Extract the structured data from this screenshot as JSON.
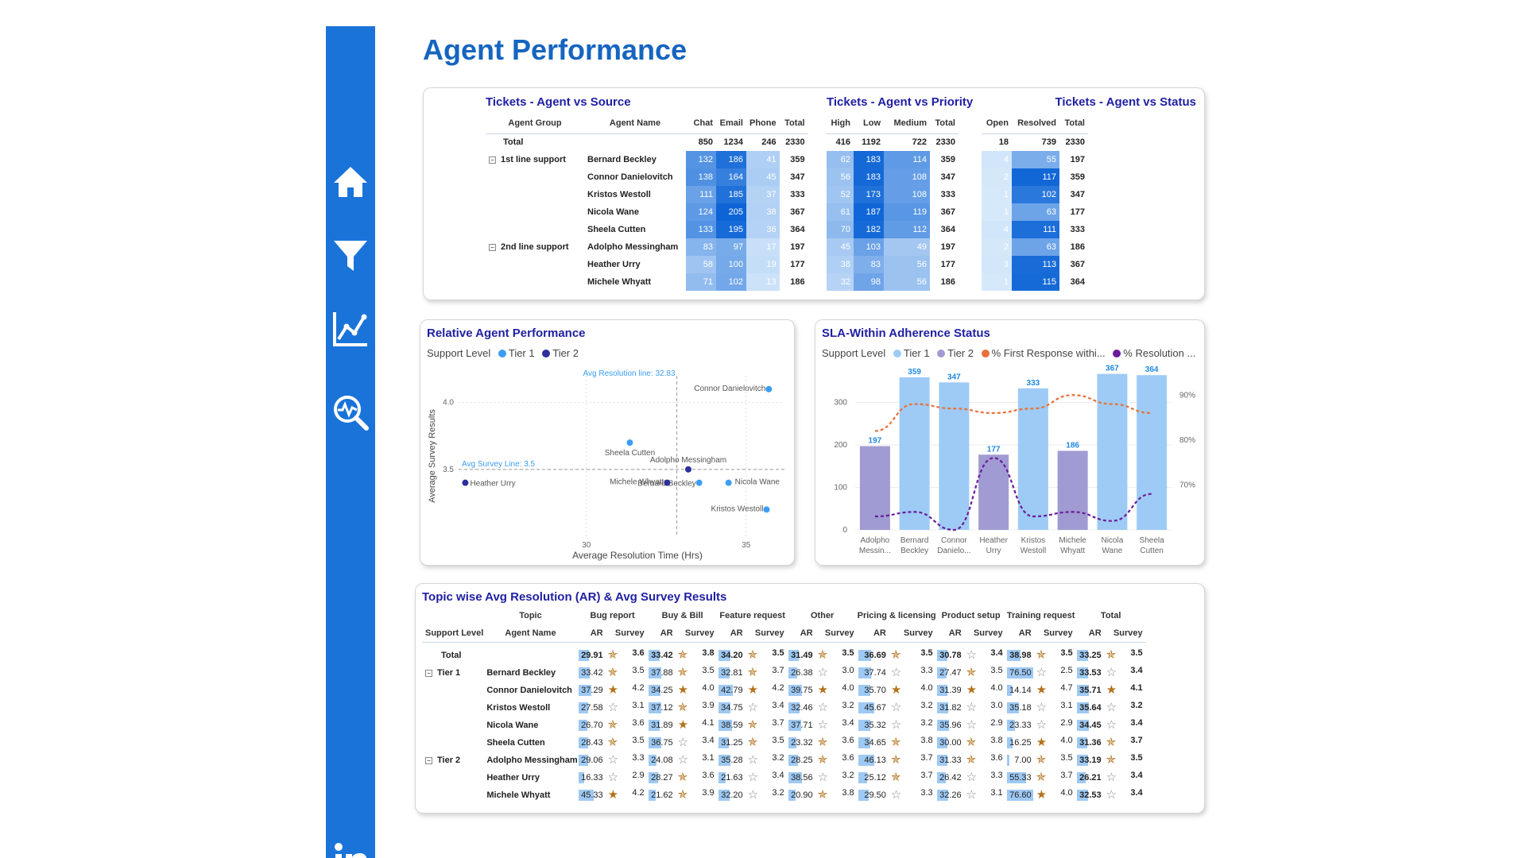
{
  "page": {
    "title": "Agent Performance"
  },
  "nav": [
    {
      "name": "home-icon"
    },
    {
      "name": "filter-icon"
    },
    {
      "name": "line-chart-icon"
    },
    {
      "name": "analytics-search-icon"
    },
    {
      "name": "linkedin-icon"
    }
  ],
  "source_table": {
    "title": "Tickets - Agent vs Source",
    "headers": [
      "Agent Group",
      "Agent Name",
      "Chat",
      "Email",
      "Phone",
      "Total"
    ],
    "total": {
      "label": "Total",
      "values": [
        "850",
        "1234",
        "246",
        "2330"
      ]
    },
    "rows": [
      {
        "group": "1st line support",
        "agent": "Bernard Beckley",
        "values": [
          "132",
          "186",
          "41",
          "359"
        ]
      },
      {
        "group": "",
        "agent": "Connor Danielovitch",
        "values": [
          "138",
          "164",
          "45",
          "347"
        ]
      },
      {
        "group": "",
        "agent": "Kristos Westoll",
        "values": [
          "111",
          "185",
          "37",
          "333"
        ]
      },
      {
        "group": "",
        "agent": "Nicola Wane",
        "values": [
          "124",
          "205",
          "38",
          "367"
        ]
      },
      {
        "group": "",
        "agent": "Sheela Cutten",
        "values": [
          "133",
          "195",
          "36",
          "364"
        ]
      },
      {
        "group": "2nd line support",
        "agent": "Adolpho Messingham",
        "values": [
          "83",
          "97",
          "17",
          "197"
        ]
      },
      {
        "group": "",
        "agent": "Heather Urry",
        "values": [
          "58",
          "100",
          "19",
          "177"
        ]
      },
      {
        "group": "",
        "agent": "Michele Whyatt",
        "values": [
          "71",
          "102",
          "13",
          "186"
        ]
      }
    ]
  },
  "priority_table": {
    "title": "Tickets - Agent vs Priority",
    "headers": [
      "High",
      "Low",
      "Medium",
      "Total"
    ],
    "total": [
      "416",
      "1192",
      "722",
      "2330"
    ],
    "rows": [
      [
        "62",
        "183",
        "114",
        "359"
      ],
      [
        "56",
        "183",
        "108",
        "347"
      ],
      [
        "52",
        "173",
        "108",
        "333"
      ],
      [
        "61",
        "187",
        "119",
        "367"
      ],
      [
        "70",
        "182",
        "112",
        "364"
      ],
      [
        "45",
        "103",
        "49",
        "197"
      ],
      [
        "38",
        "83",
        "56",
        "177"
      ],
      [
        "32",
        "98",
        "56",
        "186"
      ]
    ]
  },
  "status_table": {
    "title": "Tickets - Agent vs Status",
    "headers": [
      "Open",
      "Resolved",
      "Total"
    ],
    "total": [
      "18",
      "739",
      "2330"
    ],
    "rows": [
      [
        "4",
        "55",
        "197"
      ],
      [
        "2",
        "117",
        "359"
      ],
      [
        "1",
        "102",
        "347"
      ],
      [
        "1",
        "63",
        "177"
      ],
      [
        "4",
        "111",
        "333"
      ],
      [
        "2",
        "63",
        "186"
      ],
      [
        "3",
        "113",
        "367"
      ],
      [
        "1",
        "115",
        "364"
      ]
    ]
  },
  "scatter": {
    "title": "Relative Agent Performance",
    "legend_title": "Support Level",
    "legend": [
      {
        "name": "Tier 1",
        "color": "#3a9ef5"
      },
      {
        "name": "Tier 2",
        "color": "#2c2f9c"
      }
    ],
    "ref_x_label": "Avg Resolution line: 32.83",
    "ref_y_label": "Avg Survey Line: 3.5",
    "x_tick_labels": [
      "30",
      "35"
    ],
    "y_tick_labels": [
      "3.5",
      "4.0"
    ]
  },
  "sla": {
    "title": "SLA-Within Adherence Status",
    "legend_title": "Support Level",
    "legend": [
      {
        "name": "Tier 1",
        "color": "#9ecbf5"
      },
      {
        "name": "Tier 2",
        "color": "#a09bd2"
      },
      {
        "name": "% First Response withi...",
        "color": "#e8703a"
      },
      {
        "name": "% Resolution ...",
        "color": "#6a1b9a"
      }
    ],
    "y_tick_labels": [
      "0",
      "100",
      "200",
      "300"
    ],
    "y2_tick_labels": [
      "70%",
      "80%",
      "90%"
    ]
  },
  "chart_data": [
    {
      "type": "scatter",
      "title": "Relative Agent Performance",
      "xlabel": "Average Resolution Time (Hrs)",
      "ylabel": "Average Survey Results",
      "xlim": [
        26,
        36.2
      ],
      "ylim": [
        3.0,
        4.2
      ],
      "ref_x": 32.83,
      "ref_y": 3.5,
      "series": [
        {
          "name": "Tier 1",
          "points": [
            {
              "label": "Connor Danielovitch",
              "x": 35.71,
              "y": 4.1
            },
            {
              "label": "Sheela Cutten",
              "x": 31.36,
              "y": 3.7
            },
            {
              "label": "Nicola Wane",
              "x": 34.45,
              "y": 3.4
            },
            {
              "label": "Bernard Beckley",
              "x": 33.53,
              "y": 3.4
            },
            {
              "label": "Kristos Westoll",
              "x": 35.64,
              "y": 3.2
            }
          ]
        },
        {
          "name": "Tier 2",
          "points": [
            {
              "label": "Adolpho Messingham",
              "x": 33.19,
              "y": 3.5
            },
            {
              "label": "Michele Whyatt",
              "x": 32.53,
              "y": 3.4
            },
            {
              "label": "Heather Urry",
              "x": 26.21,
              "y": 3.4
            }
          ]
        }
      ]
    },
    {
      "type": "bar",
      "title": "SLA-Within Adherence Status",
      "categories": [
        "Adolpho Messin...",
        "Bernard Beckley",
        "Connor Danielo...",
        "Heather Urry",
        "Kristos Westoll",
        "Michele Whyatt",
        "Nicola Wane",
        "Sheela Cutten"
      ],
      "tiers": [
        "Tier 2",
        "Tier 1",
        "Tier 1",
        "Tier 2",
        "Tier 1",
        "Tier 2",
        "Tier 1",
        "Tier 1"
      ],
      "values": [
        197,
        359,
        347,
        177,
        333,
        186,
        367,
        364
      ],
      "ylim": [
        0,
        370
      ],
      "y2lim": [
        0.6,
        0.95
      ],
      "lines": [
        {
          "name": "% First Response withi...",
          "values": [
            0.82,
            0.88,
            0.87,
            0.86,
            0.87,
            0.9,
            0.88,
            0.86
          ]
        },
        {
          "name": "% Resolution ...",
          "values": [
            0.63,
            0.64,
            0.6,
            0.76,
            0.63,
            0.64,
            0.62,
            0.68
          ]
        }
      ]
    }
  ],
  "topic_table": {
    "title": "Topic wise Avg Resolution (AR) & Avg Survey Results",
    "topic_label": "Topic",
    "support_level_label": "Support Level",
    "agent_name_label": "Agent Name",
    "ar_label": "AR",
    "survey_label": "Survey",
    "topics": [
      "Bug report",
      "Buy & Bill",
      "Feature request",
      "Other",
      "Pricing & licensing",
      "Product setup",
      "Training request",
      "Total"
    ],
    "rows": [
      {
        "level": "Total",
        "agent": "",
        "kind": "total",
        "cells": [
          [
            "29.91",
            "3.6"
          ],
          [
            "33.42",
            "3.8"
          ],
          [
            "34.20",
            "3.5"
          ],
          [
            "31.49",
            "3.5"
          ],
          [
            "36.69",
            "3.5"
          ],
          [
            "30.78",
            "3.4"
          ],
          [
            "38.98",
            "3.5"
          ],
          [
            "33.25",
            "3.5"
          ]
        ]
      },
      {
        "level": "Tier 1",
        "agent": "Bernard Beckley",
        "cells": [
          [
            "33.42",
            "3.5"
          ],
          [
            "37.88",
            "3.5"
          ],
          [
            "32.81",
            "3.7"
          ],
          [
            "26.38",
            "3.0"
          ],
          [
            "37.74",
            "3.3"
          ],
          [
            "27.47",
            "3.5"
          ],
          [
            "76.50",
            "2.5"
          ],
          [
            "33.53",
            "3.4"
          ]
        ]
      },
      {
        "level": "",
        "agent": "Connor Danielovitch",
        "cells": [
          [
            "37.29",
            "4.2"
          ],
          [
            "34.25",
            "4.0"
          ],
          [
            "42.79",
            "4.2"
          ],
          [
            "39.75",
            "4.0"
          ],
          [
            "35.70",
            "4.0"
          ],
          [
            "31.39",
            "4.0"
          ],
          [
            "14.14",
            "4.7"
          ],
          [
            "35.71",
            "4.1"
          ]
        ]
      },
      {
        "level": "",
        "agent": "Kristos Westoll",
        "cells": [
          [
            "27.58",
            "3.1"
          ],
          [
            "37.12",
            "3.9"
          ],
          [
            "34.75",
            "3.4"
          ],
          [
            "32.46",
            "3.2"
          ],
          [
            "45.67",
            "3.2"
          ],
          [
            "31.82",
            "3.0"
          ],
          [
            "35.18",
            "3.1"
          ],
          [
            "35.64",
            "3.2"
          ]
        ]
      },
      {
        "level": "",
        "agent": "Nicola Wane",
        "cells": [
          [
            "26.70",
            "3.6"
          ],
          [
            "31.89",
            "4.1"
          ],
          [
            "38.59",
            "3.7"
          ],
          [
            "37.71",
            "3.4"
          ],
          [
            "35.32",
            "3.2"
          ],
          [
            "35.96",
            "2.9"
          ],
          [
            "23.33",
            "2.9"
          ],
          [
            "34.45",
            "3.4"
          ]
        ]
      },
      {
        "level": "",
        "agent": "Sheela Cutten",
        "cells": [
          [
            "28.43",
            "3.5"
          ],
          [
            "36.75",
            "3.4"
          ],
          [
            "31.25",
            "3.5"
          ],
          [
            "23.32",
            "3.6"
          ],
          [
            "34.65",
            "3.8"
          ],
          [
            "30.00",
            "3.8"
          ],
          [
            "16.25",
            "4.0"
          ],
          [
            "31.36",
            "3.7"
          ]
        ]
      },
      {
        "level": "Tier 2",
        "agent": "Adolpho Messingham",
        "cells": [
          [
            "29.06",
            "3.3"
          ],
          [
            "24.08",
            "3.1"
          ],
          [
            "35.28",
            "3.2"
          ],
          [
            "28.25",
            "3.6"
          ],
          [
            "46.13",
            "3.7"
          ],
          [
            "31.33",
            "3.6"
          ],
          [
            "7.00",
            "3.5"
          ],
          [
            "33.19",
            "3.5"
          ]
        ]
      },
      {
        "level": "",
        "agent": "Heather Urry",
        "cells": [
          [
            "16.33",
            "2.9"
          ],
          [
            "28.27",
            "3.6"
          ],
          [
            "21.63",
            "3.4"
          ],
          [
            "38.56",
            "3.2"
          ],
          [
            "25.12",
            "3.7"
          ],
          [
            "26.42",
            "3.3"
          ],
          [
            "55.33",
            "3.7"
          ],
          [
            "26.21",
            "3.4"
          ]
        ]
      },
      {
        "level": "",
        "agent": "Michele Whyatt",
        "cells": [
          [
            "45.33",
            "4.2"
          ],
          [
            "21.62",
            "3.9"
          ],
          [
            "32.20",
            "3.2"
          ],
          [
            "20.90",
            "3.8"
          ],
          [
            "29.50",
            "3.3"
          ],
          [
            "32.26",
            "3.1"
          ],
          [
            "76.60",
            "4.0"
          ],
          [
            "32.53",
            "3.4"
          ]
        ]
      }
    ]
  }
}
